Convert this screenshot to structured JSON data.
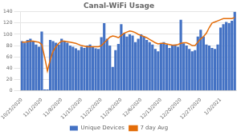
{
  "chart_data": {
    "type": "bar",
    "title": "Canal-WiFi Usage",
    "categories": [
      "10/25/2020",
      null,
      null,
      null,
      null,
      null,
      null,
      "11/1/2020",
      null,
      null,
      null,
      null,
      null,
      null,
      "11/8/2020",
      null,
      null,
      null,
      null,
      null,
      null,
      "11/15/2020",
      null,
      null,
      null,
      null,
      null,
      null,
      "11/22/2020",
      null,
      null,
      null,
      null,
      null,
      null,
      "11/29/2020",
      null,
      null,
      null,
      null,
      null,
      null,
      "12/6/2020",
      null,
      null,
      null,
      null,
      null,
      null,
      "12/13/2020",
      null,
      null,
      null,
      null,
      null,
      null,
      "12/20/2020",
      null,
      null,
      null,
      null,
      null,
      null,
      "12/27/2020",
      null,
      null,
      null,
      null,
      null,
      null,
      "1/3/2021",
      null,
      null,
      null,
      null,
      null
    ],
    "series": [
      {
        "name": "Unique Devices",
        "type": "bar",
        "color": "#4472C4",
        "values": [
          88,
          85,
          90,
          92,
          88,
          82,
          78,
          105,
          2,
          2,
          90,
          88,
          85,
          82,
          92,
          88,
          85,
          80,
          78,
          75,
          72,
          78,
          76,
          80,
          82,
          78,
          75,
          74,
          95,
          120,
          92,
          80,
          42,
          72,
          83,
          118,
          102,
          96,
          100,
          98,
          86,
          92,
          100,
          96,
          90,
          86,
          82,
          74,
          70,
          84,
          86,
          82,
          76,
          80,
          82,
          78,
          126,
          84,
          80,
          74,
          70,
          72,
          96,
          108,
          96,
          82,
          80,
          76,
          74,
          82,
          112,
          118,
          122,
          120,
          124,
          140
        ]
      },
      {
        "name": "7 day Avg",
        "type": "line",
        "color": "#E36C09",
        "values": [
          86,
          86,
          87,
          88,
          88,
          87,
          86,
          82,
          60,
          35,
          55,
          70,
          78,
          84,
          88,
          88,
          87,
          86,
          85,
          84,
          82,
          80,
          79,
          78,
          78,
          78,
          78,
          78,
          80,
          85,
          90,
          95,
          97,
          96,
          94,
          98,
          102,
          104,
          106,
          105,
          103,
          100,
          98,
          96,
          94,
          91,
          88,
          85,
          83,
          84,
          84,
          83,
          82,
          81,
          81,
          82,
          84,
          85,
          85,
          83,
          80,
          80,
          86,
          92,
          96,
          102,
          112,
          120,
          122,
          124,
          126,
          128,
          128,
          128,
          128,
          130
        ]
      }
    ],
    "ylim": [
      0,
      140
    ],
    "yticks": [
      0,
      20,
      40,
      60,
      80,
      100,
      120,
      140
    ],
    "grid": true,
    "legend": "bottom"
  }
}
